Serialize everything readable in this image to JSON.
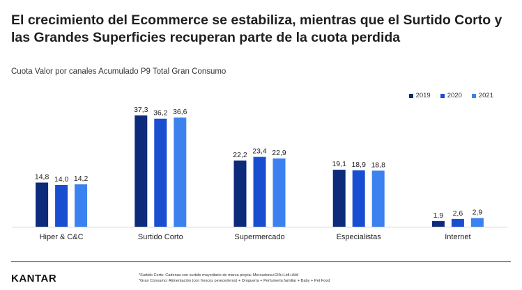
{
  "header": {
    "title": "El crecimiento del Ecommerce se estabiliza, mientras que el Surtido Corto y las Grandes Superficies recuperan parte de la cuota perdida",
    "subtitle": "Cuota Valor por canales Acumulado P9 Total Gran Consumo"
  },
  "footer": {
    "logo": "KANTAR",
    "note1": "*Surtido Corto: Cadenas con surtido mayoritario de marca propia: Mercadona+DIA+Lidl+Aldi",
    "note2": "*Gran Consumo: Alimentación (con frescos perecederos) + Droguería + Perfumería familiar + Baby + Pet Food"
  },
  "colors": {
    "series_2019": "#0d2b7a",
    "series_2020": "#1a4ed1",
    "series_2021": "#3b82f0"
  },
  "chart_data": {
    "type": "bar",
    "title": "Cuota Valor por canales Acumulado P9 Total Gran Consumo",
    "xlabel": "",
    "ylabel": "",
    "ylim": [
      0,
      40
    ],
    "grid": false,
    "legend": "top-right",
    "categories": [
      "Hiper & C&C",
      "Surtido Corto",
      "Supermercado",
      "Especialistas",
      "Internet"
    ],
    "series": [
      {
        "name": "2019",
        "values": [
          14.8,
          37.3,
          22.2,
          19.1,
          1.9
        ],
        "labels": [
          "14,8",
          "37,3",
          "22,2",
          "19,1",
          "1,9"
        ]
      },
      {
        "name": "2020",
        "values": [
          14.0,
          36.2,
          23.4,
          18.9,
          2.6
        ],
        "labels": [
          "14,0",
          "36,2",
          "23,4",
          "18,9",
          "2,6"
        ]
      },
      {
        "name": "2021",
        "values": [
          14.2,
          36.6,
          22.9,
          18.8,
          2.9
        ],
        "labels": [
          "14,2",
          "36,6",
          "22,9",
          "18,8",
          "2,9"
        ]
      }
    ]
  }
}
